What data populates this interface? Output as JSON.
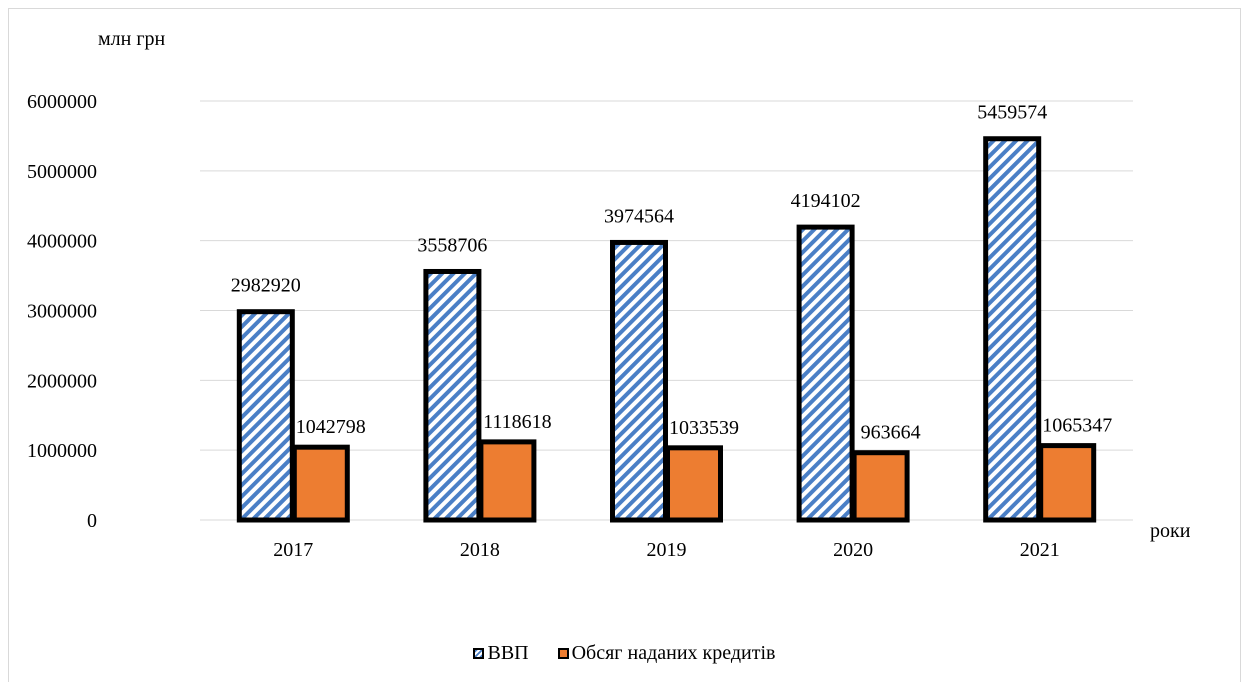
{
  "chart_data": {
    "type": "bar",
    "categories": [
      "2017",
      "2018",
      "2019",
      "2020",
      "2021"
    ],
    "series": [
      {
        "name": "ВВП",
        "values": [
          2982920,
          3558706,
          3974564,
          4194102,
          5459574
        ],
        "pattern": "diagonal-hatch",
        "color": "#4a7fc6"
      },
      {
        "name": "Обсяг наданих кредитів",
        "values": [
          1042798,
          1118618,
          1033539,
          963664,
          1065347
        ],
        "color": "#ed7d31"
      }
    ],
    "data_labels": {
      "gdp": [
        "2982920",
        "3558706",
        "3974564",
        "4194102",
        "5459574"
      ],
      "credits": [
        "1042798",
        "1118618",
        "1033539",
        "963664",
        "1065347"
      ]
    },
    "ylabel": "млн грн",
    "xlabel": "роки",
    "ylim": [
      0,
      6000000
    ],
    "yticks": [
      "0",
      "1000000",
      "2000000",
      "3000000",
      "4000000",
      "5000000",
      "6000000"
    ],
    "grid": true,
    "legend_position": "bottom"
  }
}
